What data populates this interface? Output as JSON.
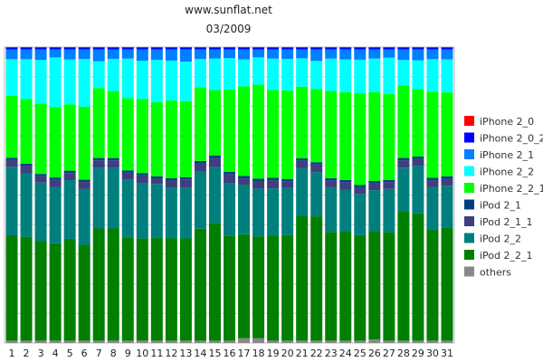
{
  "header": {
    "site": "www.sunflat.net",
    "period": "03/2009"
  },
  "chart_data": {
    "type": "bar",
    "stacked": true,
    "normalized_percent": true,
    "ylim": [
      0,
      100
    ],
    "grid": true,
    "legend_position": "right",
    "categories": [
      "1",
      "2",
      "3",
      "4",
      "5",
      "6",
      "7",
      "8",
      "9",
      "10",
      "11",
      "12",
      "13",
      "14",
      "15",
      "16",
      "17",
      "18",
      "19",
      "20",
      "21",
      "22",
      "23",
      "24",
      "25",
      "26",
      "27",
      "28",
      "29",
      "30",
      "31"
    ],
    "series": [
      {
        "name": "others",
        "color": "#888888",
        "values": [
          0.8,
          0.8,
          0.8,
          0.8,
          0.8,
          0.8,
          0.8,
          0.8,
          0.8,
          0.8,
          0.8,
          0.8,
          0.8,
          0.8,
          0.8,
          0.8,
          1.6,
          1.6,
          0.8,
          0.8,
          0.8,
          0.8,
          0.8,
          0.8,
          0.8,
          1.2,
          0.8,
          0.8,
          0.8,
          0.8,
          0.8
        ]
      },
      {
        "name": "iPod 2_2_1",
        "color": "#007f00",
        "values": [
          35.7,
          35.2,
          33.7,
          33.0,
          34.5,
          32.8,
          38.0,
          38.0,
          34.8,
          34.6,
          34.8,
          34.8,
          34.8,
          38.3,
          40.2,
          35.9,
          35.3,
          34.8,
          35.6,
          35.8,
          42.1,
          42.2,
          36.9,
          37.0,
          36.1,
          36.6,
          36.9,
          44.3,
          43.6,
          37.8,
          38.5
        ]
      },
      {
        "name": "iPod 2_2",
        "color": "#007f7f",
        "values": [
          23.2,
          21.5,
          19.9,
          19.1,
          19.9,
          19.1,
          20.6,
          20.6,
          19.9,
          18.9,
          18.3,
          17.2,
          17.4,
          19.5,
          19.1,
          17.9,
          16.6,
          16.3,
          16.1,
          15.9,
          16.4,
          15.0,
          15.2,
          14.3,
          14.1,
          14.1,
          14.6,
          15.0,
          16.3,
          14.4,
          14.1
        ]
      },
      {
        "name": "iPod 2_1_1",
        "color": "#3f3f7f",
        "values": [
          2.3,
          2.5,
          2.1,
          2.4,
          2.4,
          2.4,
          2.5,
          2.5,
          2.2,
          2.5,
          1.8,
          2.5,
          2.7,
          2.9,
          3.1,
          3.1,
          2.3,
          2.6,
          2.8,
          2.3,
          2.4,
          2.6,
          2.3,
          2.5,
          2.3,
          2.3,
          2.3,
          2.5,
          2.3,
          2.3,
          2.4
        ]
      },
      {
        "name": "iPod 2_1",
        "color": "#003f7f",
        "values": [
          0.8,
          0.8,
          0.8,
          0.8,
          0.8,
          0.8,
          0.8,
          0.8,
          0.8,
          0.8,
          0.8,
          0.8,
          0.8,
          0.8,
          0.8,
          0.8,
          0.8,
          0.8,
          0.8,
          0.8,
          0.8,
          0.8,
          0.8,
          0.8,
          0.8,
          0.8,
          0.8,
          0.8,
          0.8,
          0.8,
          0.8
        ]
      },
      {
        "name": "iPhone 2_2_1",
        "color": "#00ff00",
        "values": [
          21.0,
          21.9,
          23.9,
          23.9,
          22.5,
          25.0,
          23.7,
          22.7,
          24.5,
          25.1,
          25.1,
          26.5,
          25.9,
          25.2,
          22.4,
          28.1,
          30.4,
          32.1,
          29.8,
          30.0,
          24.3,
          24.9,
          29.6,
          29.8,
          31.4,
          30.2,
          29.1,
          24.9,
          23.1,
          29.3,
          28.5
        ]
      },
      {
        "name": "iPhone 2_2",
        "color": "#00ffff",
        "values": [
          12.4,
          13.5,
          14.8,
          16.8,
          15.2,
          16.3,
          9.1,
          10.9,
          13.4,
          13.0,
          14.4,
          13.6,
          13.4,
          9.7,
          10.8,
          10.7,
          9.1,
          9.3,
          10.7,
          10.7,
          9.6,
          9.5,
          11.0,
          11.1,
          11.5,
          11.4,
          12.4,
          8.7,
          9.9,
          11.0,
          11.2
        ]
      },
      {
        "name": "iPhone 2_1",
        "color": "#007fff",
        "values": [
          3.3,
          3.3,
          3.5,
          2.7,
          3.4,
          3.3,
          4.0,
          3.2,
          3.1,
          3.8,
          3.5,
          3.8,
          4.2,
          3.3,
          3.1,
          3.0,
          3.4,
          2.7,
          3.1,
          3.2,
          3.0,
          3.9,
          3.1,
          3.4,
          3.5,
          3.1,
          2.8,
          3.6,
          3.7,
          3.3,
          3.4
        ]
      },
      {
        "name": "iPhone 2_0_2",
        "color": "#0000ff",
        "values": [
          0.5,
          0.5,
          0.5,
          0.5,
          0.5,
          0.5,
          0.5,
          0.5,
          0.5,
          0.5,
          0.5,
          0.5,
          0.5,
          0.5,
          0.5,
          0.5,
          0.5,
          0.5,
          0.5,
          0.5,
          0.5,
          0.5,
          0.5,
          0.5,
          0.5,
          0.5,
          0.5,
          0.5,
          0.5,
          0.5,
          0.5
        ]
      },
      {
        "name": "iPhone 2_0",
        "color": "#ff0000",
        "values": [
          0.3,
          0.3,
          0.3,
          0.3,
          0.3,
          0.3,
          0.3,
          0.3,
          0.3,
          0.3,
          0.3,
          0.3,
          0.3,
          0.3,
          0.3,
          0.3,
          0.3,
          0.3,
          0.3,
          0.3,
          0.3,
          0.3,
          0.3,
          0.3,
          0.3,
          0.3,
          0.3,
          0.3,
          0.3,
          0.3,
          0.3
        ]
      }
    ],
    "legend": [
      "iPhone 2_0",
      "iPhone 2_0_2",
      "iPhone 2_1",
      "iPhone 2_2",
      "iPhone 2_2_1",
      "iPod 2_1",
      "iPod 2_1_1",
      "iPod 2_2",
      "iPod 2_2_1",
      "others"
    ]
  }
}
